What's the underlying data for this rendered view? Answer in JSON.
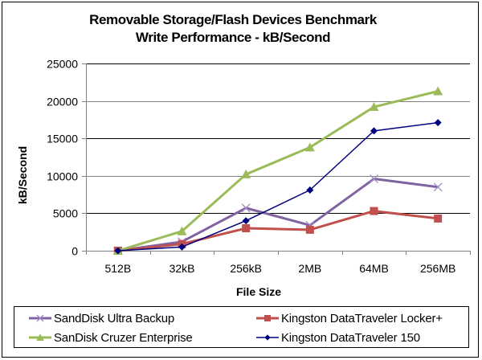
{
  "chart_data": {
    "type": "line",
    "title": [
      "Removable Storage/Flash Devices Benchmark",
      "Write Performance - kB/Second"
    ],
    "xlabel": "File Size",
    "ylabel": "kB/Second",
    "categories": [
      "512B",
      "32kB",
      "256kB",
      "2MB",
      "64MB",
      "256MB"
    ],
    "ylim": [
      0,
      25000
    ],
    "yticks": [
      0,
      5000,
      10000,
      15000,
      20000,
      25000
    ],
    "ytick_labels": [
      "0",
      "5000",
      "10000",
      "15000",
      "20000",
      "25000"
    ],
    "grid": true,
    "legend_position": "bottom",
    "series": [
      {
        "name": "SandDisk Ultra Backup",
        "color": "#8064A2",
        "marker": "x",
        "values": [
          0,
          1200,
          5700,
          3400,
          9600,
          8500
        ]
      },
      {
        "name": "Kingston DataTraveler Locker+",
        "color": "#C0504D",
        "marker": "square",
        "values": [
          0,
          900,
          3000,
          2800,
          5300,
          4300
        ]
      },
      {
        "name": "SanDisk Cruzer Enterprise",
        "color": "#9BBB59",
        "marker": "triangle",
        "values": [
          0,
          2600,
          10200,
          13800,
          19200,
          21300
        ]
      },
      {
        "name": "Kingston DataTraveler 150",
        "color": "#000080",
        "marker": "diamond",
        "values": [
          0,
          500,
          4000,
          8100,
          16000,
          17100
        ]
      }
    ]
  }
}
